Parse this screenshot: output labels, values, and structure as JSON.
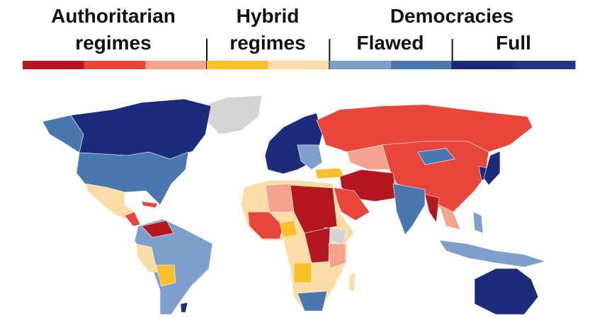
{
  "legend": {
    "authoritarian": {
      "lines": [
        "Authoritarian",
        "regimes"
      ],
      "colors": [
        "#b5171e",
        "#e8453b",
        "#f5a38f"
      ]
    },
    "hybrid": {
      "lines": [
        "Hybrid",
        "regimes"
      ],
      "colors": [
        "#f9be28",
        "#fbdca6"
      ]
    },
    "democracies": {
      "title": "Democracies",
      "flawed": {
        "label": "Flawed",
        "colors": [
          "#7e9fcb",
          "#4a77ae"
        ]
      },
      "full": {
        "label": "Full",
        "colors": [
          "#1d2b7c",
          "#233487"
        ]
      }
    }
  }
}
